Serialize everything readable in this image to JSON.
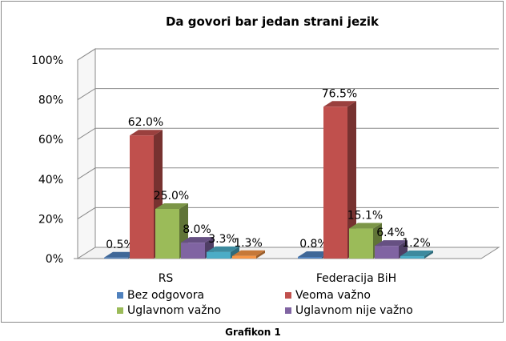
{
  "chart_data": {
    "type": "bar",
    "title": "Da govori bar jedan strani jezik",
    "categories": [
      "RS",
      "Federacija BiH"
    ],
    "series": [
      {
        "name": "Bez odgovora",
        "values": [
          0.5,
          0.8
        ],
        "labels": [
          "0.5%",
          "0.8%"
        ],
        "color": "#4f81bd"
      },
      {
        "name": "Veoma važno",
        "values": [
          62.0,
          76.5
        ],
        "labels": [
          "62.0%",
          "76.5%"
        ],
        "color": "#c0504d"
      },
      {
        "name": "Uglavnom važno",
        "values": [
          25.0,
          15.1
        ],
        "labels": [
          "25.0%",
          "15.1%"
        ],
        "color": "#9bbb59"
      },
      {
        "name": "Uglavnom nije važno",
        "values": [
          8.0,
          6.4
        ],
        "labels": [
          "8.0%",
          "6.4%"
        ],
        "color": "#8064a2"
      },
      {
        "name": "",
        "values": [
          3.3,
          1.2
        ],
        "labels": [
          "3.3%",
          "1.2%"
        ],
        "color": "#4bacc6"
      },
      {
        "name": "",
        "values": [
          1.3,
          null
        ],
        "labels": [
          "1.3%",
          ""
        ],
        "color": "#f79646"
      }
    ],
    "y_ticks": [
      "0%",
      "20%",
      "40%",
      "60%",
      "80%",
      "100%"
    ],
    "ylim": [
      0,
      100
    ],
    "grid": true,
    "legend_position": "bottom",
    "view": "3d-clustered"
  },
  "caption": "Grafikon 1"
}
